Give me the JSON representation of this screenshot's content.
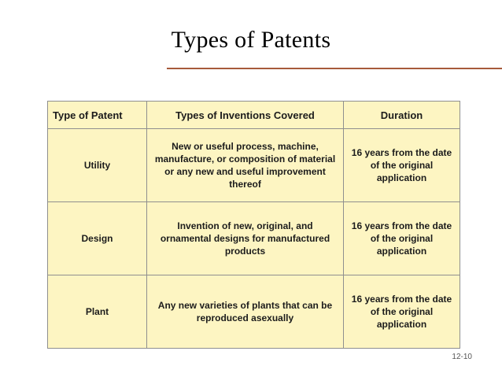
{
  "slide": {
    "title": "Types of Patents",
    "page_number": "12-10"
  },
  "table": {
    "headers": [
      "Type of Patent",
      "Types of Inventions Covered",
      "Duration"
    ],
    "rows": [
      {
        "type": "Utility",
        "covered": "New or useful process, machine, manufacture, or composition of material or any new and useful improvement thereof",
        "duration": "16 years from the date of the original application"
      },
      {
        "type": "Design",
        "covered": "Invention of new, original, and ornamental designs for manufactured products",
        "duration": "16 years from the date of the original application"
      },
      {
        "type": "Plant",
        "covered": "Any new varieties of plants that can be reproduced asexually",
        "duration": "16 years from the date of the original application"
      }
    ]
  },
  "colors": {
    "table_fill": "#fdf5c2",
    "title_rule": "#a65a3b",
    "border": "#8f8f8f"
  }
}
